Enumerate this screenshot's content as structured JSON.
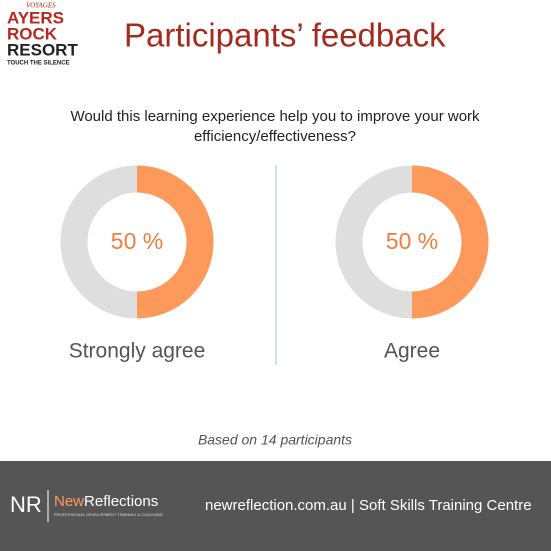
{
  "logo": {
    "top": "VOYAGES",
    "lines": [
      "AYERS",
      "ROCK",
      "RESORT"
    ],
    "tagline": "TOUCH THE SILENCE"
  },
  "title": "Participants’ feedback",
  "question": [
    "Would this learning experience help you to improve your work",
    "efficiency/effectiveness?"
  ],
  "chart_data": [
    {
      "type": "donut",
      "title": "Strongly agree",
      "values": [
        50
      ],
      "value_labels": [
        "50 %"
      ],
      "ylim": [
        0,
        100
      ],
      "color": "#fd9a5b",
      "track_color": "#dedede"
    },
    {
      "type": "donut",
      "title": "Agree",
      "values": [
        50
      ],
      "value_labels": [
        "50 %"
      ],
      "ylim": [
        0,
        100
      ],
      "color": "#fd9a5b",
      "track_color": "#dedede"
    }
  ],
  "footnote": "Based on 14 participants",
  "footer": {
    "brand_initials": "NR",
    "brand_new": "New",
    "brand_rest": "Reflections",
    "brand_tagline": "PROFESSIONAL DEVELOPMENT TRAINING & COACHING",
    "text": "newreflection.com.au | Soft Skills Training Centre"
  }
}
